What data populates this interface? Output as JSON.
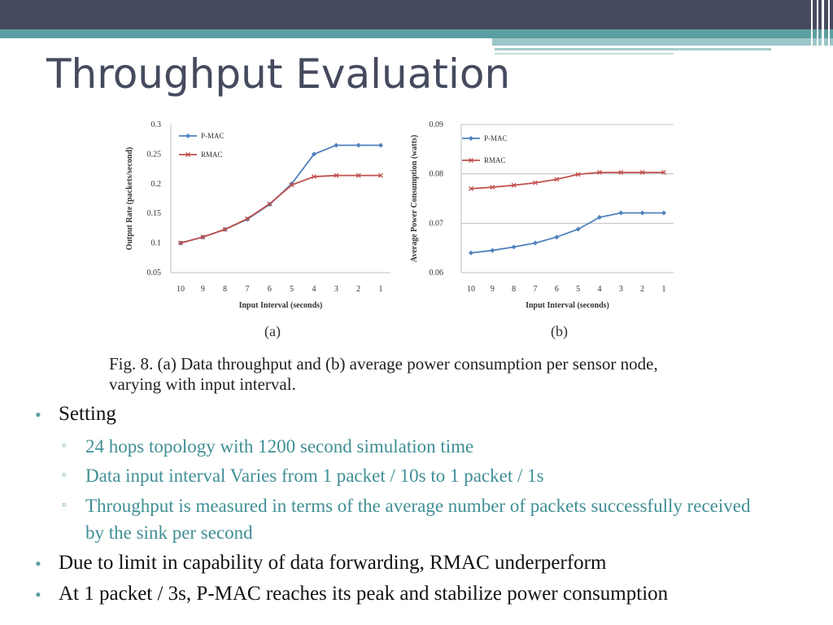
{
  "slide": {
    "title": "Throughput Evaluation",
    "caption": "Fig. 8.    (a) Data throughput and (b) average power consumption per sensor node, varying with input interval.",
    "bullets": [
      {
        "text": "Setting",
        "level": 1
      },
      {
        "text": "24 hops topology with 1200 second simulation time",
        "level": 2
      },
      {
        "text": "Data input interval Varies from 1 packet / 10s to 1 packet / 1s",
        "level": 2
      },
      {
        "text": "Throughput is measured in terms of the average number of packets successfully received by the sink per second",
        "level": 2
      },
      {
        "text": "Due to limit in capability of data forwarding, RMAC underperform",
        "level": 1
      },
      {
        "text": "At 1 packet / 3s, P-MAC reaches its peak and stabilize power consumption",
        "level": 1
      }
    ],
    "colors": {
      "header_dark": "#454A5E",
      "header_teal": "#5B9FA2",
      "subbullet_text": "#3F8F95"
    }
  },
  "chart_data": [
    {
      "type": "line",
      "panel_label": "(a)",
      "xlabel": "Input Interval (seconds)",
      "ylabel": "Output Rate (packets/second)",
      "x": [
        "10",
        "9",
        "8",
        "7",
        "6",
        "5",
        "4",
        "3",
        "2",
        "1"
      ],
      "ylim": [
        0.05,
        0.3
      ],
      "yticks": [
        "0.3",
        "0.25",
        "0.2",
        "0.15",
        "0.1",
        "0.05"
      ],
      "legend_position": "top-left",
      "grid": false,
      "series": [
        {
          "name": "P-MAC",
          "color": "#4F81BD",
          "marker": "diamond",
          "values": [
            0.1,
            0.11,
            0.123,
            0.14,
            0.165,
            0.2,
            0.25,
            0.265,
            0.265,
            0.265
          ]
        },
        {
          "name": "RMAC",
          "color": "#C0504D",
          "marker": "x",
          "values": [
            0.1,
            0.11,
            0.123,
            0.141,
            0.166,
            0.198,
            0.212,
            0.214,
            0.214,
            0.214
          ]
        }
      ]
    },
    {
      "type": "line",
      "panel_label": "(b)",
      "xlabel": "Input Interval (seconds)",
      "ylabel": "Average Power Consumption (watts)",
      "x": [
        "10",
        "9",
        "8",
        "7",
        "6",
        "5",
        "4",
        "3",
        "2",
        "1"
      ],
      "ylim": [
        0.06,
        0.09
      ],
      "yticks": [
        "0.09",
        "0.08",
        "0.07",
        "0.06"
      ],
      "legend_position": "top-left",
      "grid": "horizontal",
      "series": [
        {
          "name": "P-MAC",
          "color": "#4F81BD",
          "marker": "diamond",
          "values": [
            0.064,
            0.0645,
            0.0652,
            0.066,
            0.0672,
            0.0688,
            0.0712,
            0.0721,
            0.0721,
            0.0721
          ]
        },
        {
          "name": "RMAC",
          "color": "#C0504D",
          "marker": "x",
          "values": [
            0.077,
            0.0773,
            0.0777,
            0.0782,
            0.0789,
            0.0799,
            0.0803,
            0.0803,
            0.0803,
            0.0803
          ]
        }
      ]
    }
  ]
}
